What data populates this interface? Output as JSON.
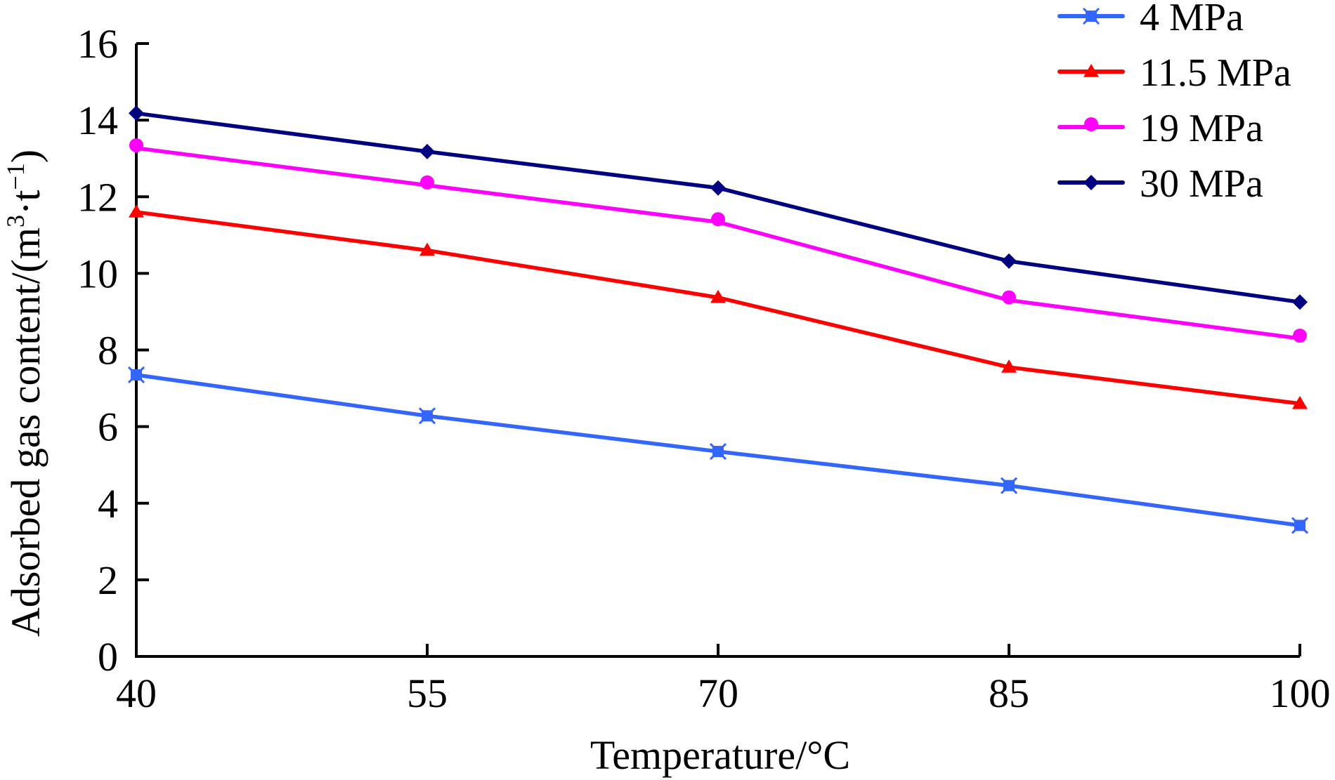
{
  "chart_data": {
    "type": "line",
    "title": "",
    "xlabel": "Temperature/°C",
    "ylabel": "Adsorbed gas content/(m³·t⁻¹)",
    "ylabel_parts": {
      "main": "Adsorbed gas content/(m",
      "sup1": "3",
      "mid": "·t",
      "sup2": "−1",
      "end": ")"
    },
    "x": [
      40,
      55,
      70,
      85,
      100
    ],
    "x_tick_labels": [
      "40",
      "55",
      "70",
      "85",
      "100"
    ],
    "y_ticks": [
      0,
      2,
      4,
      6,
      8,
      10,
      12,
      14,
      16
    ],
    "y_tick_labels": [
      "0",
      "2",
      "4",
      "6",
      "8",
      "10",
      "12",
      "14",
      "16"
    ],
    "ylim": [
      0,
      16
    ],
    "xlim": [
      40,
      100
    ],
    "grid": false,
    "legend_position": "top-right",
    "series": [
      {
        "name": "4 MPa",
        "color": "#3366ff",
        "marker": "star",
        "values": [
          7.35,
          6.28,
          5.35,
          4.46,
          3.42
        ]
      },
      {
        "name": "11.5 MPa",
        "color": "#ff0000",
        "marker": "triangle",
        "values": [
          11.6,
          10.6,
          9.37,
          7.55,
          6.6
        ]
      },
      {
        "name": "19 MPa",
        "color": "#ff00ff",
        "marker": "circle",
        "values": [
          13.27,
          12.3,
          11.34,
          9.3,
          8.3
        ]
      },
      {
        "name": "30 MPa",
        "color": "#000080",
        "marker": "diamond",
        "values": [
          14.18,
          13.18,
          12.23,
          10.32,
          9.25
        ]
      }
    ]
  }
}
